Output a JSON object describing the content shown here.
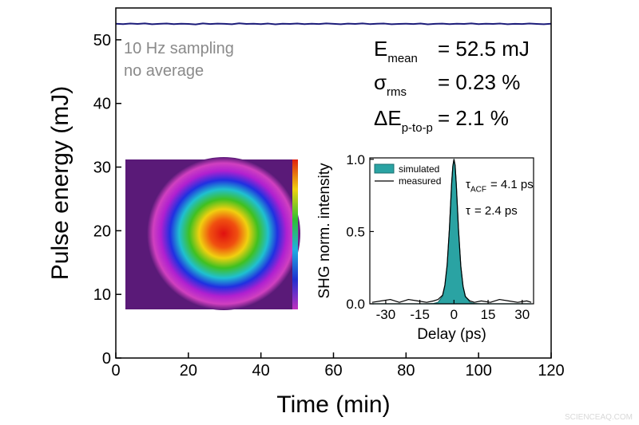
{
  "chart_data": [
    {
      "type": "line",
      "xlabel": "Time (min)",
      "ylabel": "Pulse energy (mJ)",
      "xlim": [
        0,
        120
      ],
      "ylim": [
        0,
        55
      ],
      "xticks": [
        0,
        20,
        40,
        60,
        80,
        100,
        120
      ],
      "yticks": [
        0,
        10,
        20,
        30,
        40,
        50
      ],
      "grid": false,
      "x": [
        0,
        2,
        4,
        6,
        8,
        10,
        12,
        14,
        16,
        18,
        20,
        22,
        24,
        26,
        28,
        30,
        32,
        34,
        36,
        38,
        40,
        42,
        44,
        46,
        48,
        50,
        52,
        54,
        56,
        58,
        60,
        62,
        64,
        66,
        68,
        70,
        72,
        74,
        76,
        78,
        80,
        82,
        84,
        86,
        88,
        90,
        92,
        94,
        96,
        98,
        100,
        102,
        104,
        106,
        108,
        110,
        112,
        114,
        116,
        118,
        120
      ],
      "series": [
        {
          "color": "#1c1c7a",
          "values": [
            52.52,
            52.47,
            52.55,
            52.49,
            52.58,
            52.44,
            52.51,
            52.56,
            52.46,
            52.53,
            52.5,
            52.42,
            52.57,
            52.48,
            52.54,
            52.51,
            52.45,
            52.59,
            52.49,
            52.52,
            52.47,
            52.55,
            52.43,
            52.53,
            52.5,
            52.56,
            52.46,
            52.52,
            52.48,
            52.57,
            52.51,
            52.44,
            52.54,
            52.49,
            52.58,
            52.47,
            52.52,
            52.55,
            52.45,
            52.5,
            52.53,
            52.48,
            52.56,
            52.43,
            52.51,
            52.54,
            52.47,
            52.52,
            52.49,
            52.57,
            52.46,
            52.53,
            52.5,
            52.55,
            52.44,
            52.51,
            52.48,
            52.56,
            52.5,
            52.45,
            52.52
          ]
        }
      ],
      "notes": [
        "10 Hz sampling",
        "no average"
      ],
      "formulas": [
        {
          "symbol": "E",
          "sub": "mean",
          "text": "= 52.5 mJ"
        },
        {
          "symbol": "σ",
          "sub": "rms",
          "text": "= 0.23 %"
        },
        {
          "symbol": "ΔE",
          "sub": "p-to-p",
          "text": "= 2.1 %"
        }
      ]
    },
    {
      "type": "line",
      "xlabel": "Delay (ps)",
      "ylabel": "SHG norm. intensity",
      "xlim": [
        -37,
        35
      ],
      "ylim": [
        0,
        1.01
      ],
      "xticks": [
        -30,
        -15,
        0,
        15,
        30
      ],
      "yticks": [
        {
          "value": 0,
          "label": "0.0"
        },
        {
          "value": 0.5,
          "label": "0.5"
        },
        {
          "value": 1,
          "label": "1.0"
        }
      ],
      "grid": false,
      "legend": "upper left",
      "x": [
        -36,
        -32,
        -28,
        -24,
        -20,
        -16,
        -12,
        -9,
        -7,
        -5,
        -4,
        -3,
        -2,
        -1.5,
        -1,
        -0.5,
        0,
        0.5,
        1,
        1.5,
        2,
        3,
        4,
        5,
        7,
        9,
        12,
        16,
        20,
        24,
        28,
        32,
        34
      ],
      "series": [
        {
          "name": "simulated",
          "color": "#2aa3a3",
          "fill": true,
          "values": [
            0,
            0,
            0,
            0,
            0,
            0,
            0,
            0.002,
            0.01,
            0.053,
            0.121,
            0.263,
            0.515,
            0.679,
            0.835,
            0.955,
            1,
            0.955,
            0.835,
            0.679,
            0.515,
            0.263,
            0.121,
            0.053,
            0.01,
            0.002,
            0,
            0,
            0,
            0,
            0,
            0,
            0
          ]
        },
        {
          "name": "measured",
          "color": "#000000",
          "values": [
            0.01,
            0.02,
            0.03,
            0.01,
            0.03,
            0.02,
            0.01,
            0.02,
            0.03,
            0.06,
            0.13,
            0.27,
            0.52,
            0.68,
            0.84,
            0.95,
            1.0,
            0.96,
            0.83,
            0.67,
            0.51,
            0.26,
            0.12,
            0.05,
            0.02,
            0.01,
            0.02,
            0.01,
            0.03,
            0.02,
            0.01,
            0.02,
            0.01
          ]
        }
      ],
      "formulas": [
        {
          "symbol": "τ",
          "sub": "ACF",
          "text": "= 4.1 ps"
        },
        {
          "symbol": "τ",
          "text": "= 2.4 ps"
        }
      ]
    }
  ],
  "watermark": "SCIENCEAQ.COM"
}
